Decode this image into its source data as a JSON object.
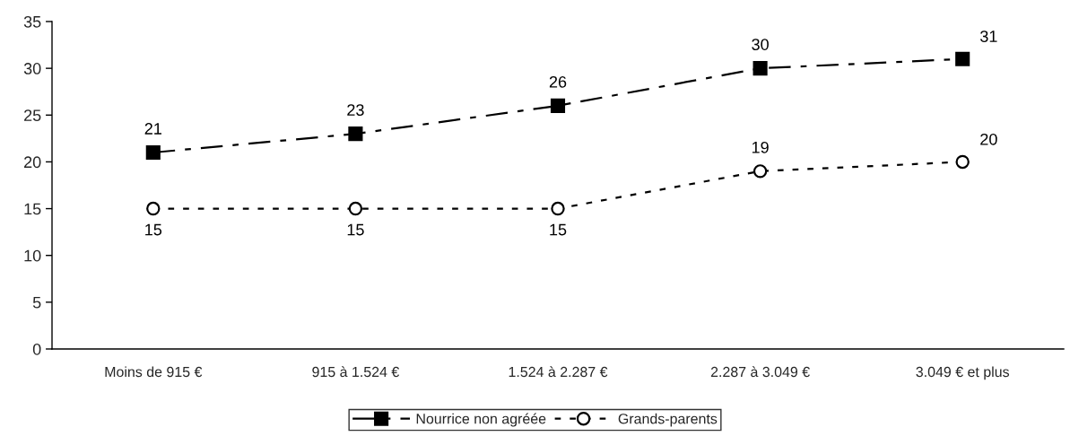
{
  "chart_data": {
    "type": "line",
    "categories": [
      "Moins de 915 €",
      "915 à 1.524 €",
      "1.524 à 2.287 €",
      "2.287 à 3.049 €",
      "3.049 € et plus"
    ],
    "series": [
      {
        "name": "Nourrice non agréée",
        "color": "#000000",
        "marker": "square",
        "line_style": "dashdot",
        "values": [
          21,
          23,
          26,
          30,
          31
        ]
      },
      {
        "name": "Grands-parents",
        "color": "#000000",
        "marker": "circle",
        "line_style": "dotted",
        "values": [
          15,
          15,
          15,
          19,
          20
        ]
      }
    ],
    "ylim": [
      0,
      35
    ],
    "yticks": [
      0,
      5,
      10,
      15,
      20,
      25,
      30,
      35
    ],
    "data_labels": true,
    "grid": false,
    "legend": "bottom"
  }
}
